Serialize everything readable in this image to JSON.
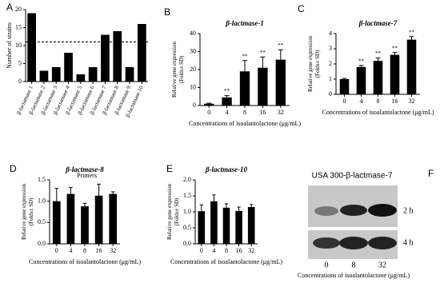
{
  "chart_data": [
    {
      "type": "bar",
      "label": "A",
      "categories": [
        "β-lactamase 1",
        "β-lactamase 2",
        "β-lactamase 3",
        "β-lactamase 4",
        "β-lactamase 5",
        "β-lactamase 6",
        "β-lactamase 7",
        "β-lactamase 8",
        "β-lactamase 9",
        "β-lactamase 10"
      ],
      "values": [
        19,
        3,
        4,
        8,
        2,
        4,
        13,
        14,
        4,
        16
      ],
      "threshold": 11,
      "color": "#000000",
      "ylim": [
        0,
        20
      ],
      "yticks": [
        0,
        5,
        10,
        15,
        20
      ],
      "ylabel": "Number of strains",
      "xlabel": "Primers"
    },
    {
      "type": "bar",
      "label": "B",
      "title": "β-lactmase-1",
      "categories": [
        "0",
        "4",
        "8",
        "16",
        "32"
      ],
      "values": [
        1,
        4.5,
        19,
        21,
        25.5
      ],
      "errors": [
        0.3,
        1,
        6,
        6,
        5.5
      ],
      "annotations": [
        null,
        "**",
        "**",
        "**",
        "**"
      ],
      "color": "#000000",
      "ylim": [
        0,
        40
      ],
      "yticks": [
        0,
        10,
        20,
        30,
        40
      ],
      "ylabel": "Relative gene expression (Folds± SD)",
      "xlabel": "Concentrations of isoalantolactone (μg/mL)"
    },
    {
      "type": "bar",
      "label": "C",
      "title": "β-lactmase-7",
      "categories": [
        "0",
        "4",
        "8",
        "16",
        "32"
      ],
      "values": [
        1,
        1.8,
        2.2,
        2.6,
        3.6
      ],
      "errors": [
        0.05,
        0.1,
        0.2,
        0.15,
        0.2
      ],
      "annotations": [
        null,
        "**",
        "**",
        "**",
        "**"
      ],
      "color": "#000000",
      "ylim": [
        0,
        4
      ],
      "yticks": [
        0,
        1,
        2,
        3,
        4
      ],
      "ylabel": "Relative gene expression (Folds± SD)",
      "xlabel": "Concentrations of isoalantolactone (μg/mL)"
    },
    {
      "type": "bar",
      "label": "D",
      "title": "β-lactmase-8",
      "categories": [
        "0",
        "4",
        "8",
        "16",
        "32"
      ],
      "values": [
        1.0,
        1.17,
        0.88,
        1.13,
        1.17
      ],
      "errors": [
        0.3,
        0.15,
        0.07,
        0.27,
        0.05
      ],
      "color": "#000000",
      "ylim": [
        0,
        1.5
      ],
      "yticks": [
        {
          "value": 0,
          "label": "0.0"
        },
        0.5,
        {
          "value": 1,
          "label": "1.0"
        },
        1.5
      ],
      "ylabel": "Relative gene expression (Folds± SD)",
      "xlabel": "Concentrations of isoalantolactone (μg/mL)"
    },
    {
      "type": "bar",
      "label": "E",
      "title": "β-lactmase-10",
      "categories": [
        "0",
        "4",
        "8",
        "16",
        "32"
      ],
      "values": [
        1.02,
        1.33,
        1.13,
        1.03,
        1.15
      ],
      "errors": [
        0.2,
        0.2,
        0.12,
        0.12,
        0.08
      ],
      "color": "#000000",
      "ylim": [
        0,
        2
      ],
      "yticks": [
        {
          "value": 0,
          "label": "0.0"
        },
        0.5,
        {
          "value": 1,
          "label": "1.0"
        },
        1.5,
        {
          "value": 2,
          "label": "2.0"
        }
      ],
      "ylabel": "Relative gene expression (Folds± SD)",
      "xlabel": "Concentrations of isoalantolactone (μg/mL)"
    }
  ],
  "blot": {
    "label": "F",
    "title": "USA 300-β-lactmase-7",
    "lanes": [
      "0",
      "8",
      "32"
    ],
    "rows": [
      "2 h",
      "4 h"
    ],
    "xlabel": "Concentrations of isoalantolactone (μg/mL)"
  }
}
